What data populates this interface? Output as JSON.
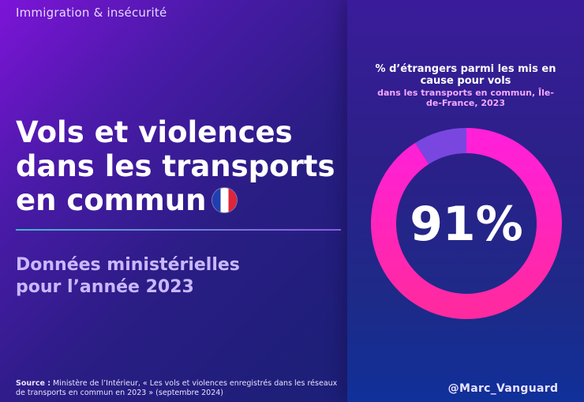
{
  "category": "Immigration & insécurité",
  "title_lines": [
    "Vols et violences",
    "dans les transports",
    "en commun"
  ],
  "subtitle_lines": [
    "Données ministérielles",
    "pour l’année 2023"
  ],
  "source": {
    "label": "Source :",
    "text": "Ministère de l’Intérieur, « Les vols et violences enregistrés dans les réseaux de transports en commun en 2023 » (septembre 2024)"
  },
  "handle": "@Marc_Vanguard",
  "flag_icon": "france-flag-icon",
  "colors": {
    "accent": "#ff1ec8",
    "remainder": "#7a46e0"
  },
  "chart_data": {
    "type": "pie",
    "title": "% d’étrangers parmi les mis en cause pour vols",
    "subtitle": "dans les transports en commun, Île-de-France, 2023",
    "center_label": "91%",
    "slices": [
      {
        "label": "",
        "value": 91
      },
      {
        "label": "",
        "value": 9
      }
    ]
  }
}
